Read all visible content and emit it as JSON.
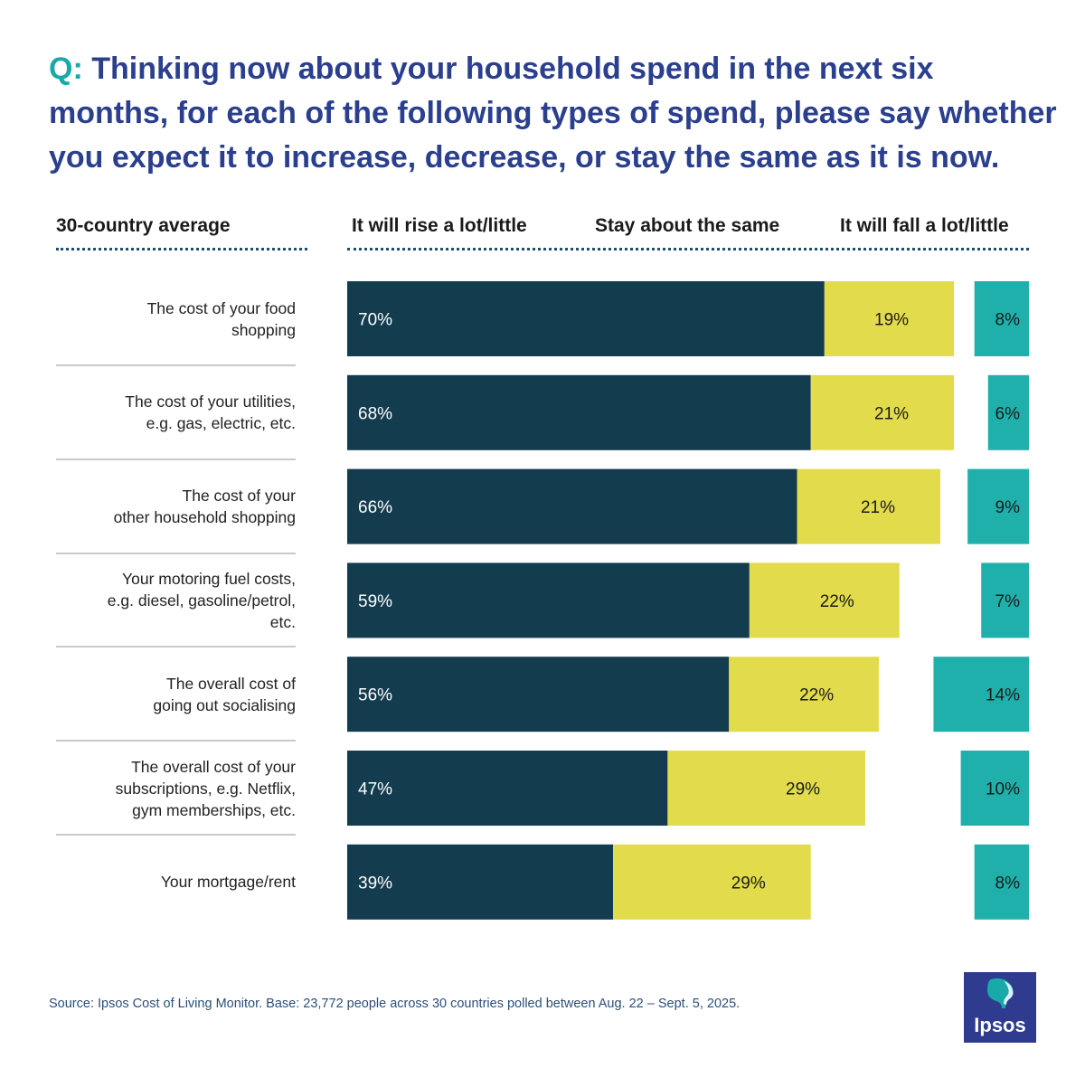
{
  "question": {
    "prefix": "Q:",
    "text": "Thinking now about your household spend in the next six months, for each of the following types of spend, please say whether you expect it to increase, decrease, or stay the same as it is now."
  },
  "headers": {
    "average": "30-country average",
    "rise": "It will rise a lot/little",
    "same": "Stay about the same",
    "fall": "It will fall a lot/little"
  },
  "chart_data": {
    "type": "bar",
    "orientation": "horizontal",
    "stacked": true,
    "unit": "%",
    "categories": [
      "The cost of your food shopping",
      "The cost of your utilities, e.g. gas, electric, etc.",
      "The cost of your other household shopping",
      "Your motoring fuel costs, e.g. diesel, gasoline/petrol, etc.",
      "The overall cost of going out socialising",
      "The overall cost of your subscriptions, e.g. Netflix, gym memberships, etc.",
      "Your mortgage/rent"
    ],
    "category_lines": [
      [
        "The cost of your food",
        "shopping"
      ],
      [
        "The cost of your utilities,",
        "e.g. gas, electric, etc."
      ],
      [
        "The cost of your",
        "other household shopping"
      ],
      [
        "Your motoring fuel costs,",
        "e.g. diesel, gasoline/petrol,",
        "etc."
      ],
      [
        "The overall cost of",
        "going out socialising"
      ],
      [
        "The overall cost of your",
        "subscriptions, e.g. Netflix,",
        "gym memberships, etc."
      ],
      [
        "Your mortgage/rent"
      ]
    ],
    "series": [
      {
        "name": "It will rise a lot/little",
        "values": [
          70,
          68,
          66,
          59,
          56,
          47,
          39
        ],
        "labels": [
          "70%",
          "68%",
          "66%",
          "59%",
          "56%",
          "47%",
          "39%"
        ]
      },
      {
        "name": "Stay about the same",
        "values": [
          19,
          21,
          21,
          22,
          22,
          29,
          29
        ],
        "labels": [
          "19%",
          "21%",
          "21%",
          "22%",
          "22%",
          "29%",
          "29%"
        ]
      },
      {
        "name": "It will fall a lot/little",
        "values": [
          8,
          6,
          9,
          7,
          14,
          10,
          8
        ],
        "labels": [
          "8%",
          "6%",
          "9%",
          "7%",
          "14%",
          "10%",
          "8%"
        ]
      }
    ],
    "colors": {
      "rise": "#133c4f",
      "same": "#e2dc4c",
      "fall": "#1fb0ab"
    }
  },
  "source": "Source: Ipsos Cost of Living Monitor. Base: 23,772 people across 30 countries polled between Aug. 22 – Sept. 5, 2025.",
  "logo": {
    "text": "Ipsos",
    "bg": "#2e3b8f",
    "accent": "#1aa9a9"
  }
}
